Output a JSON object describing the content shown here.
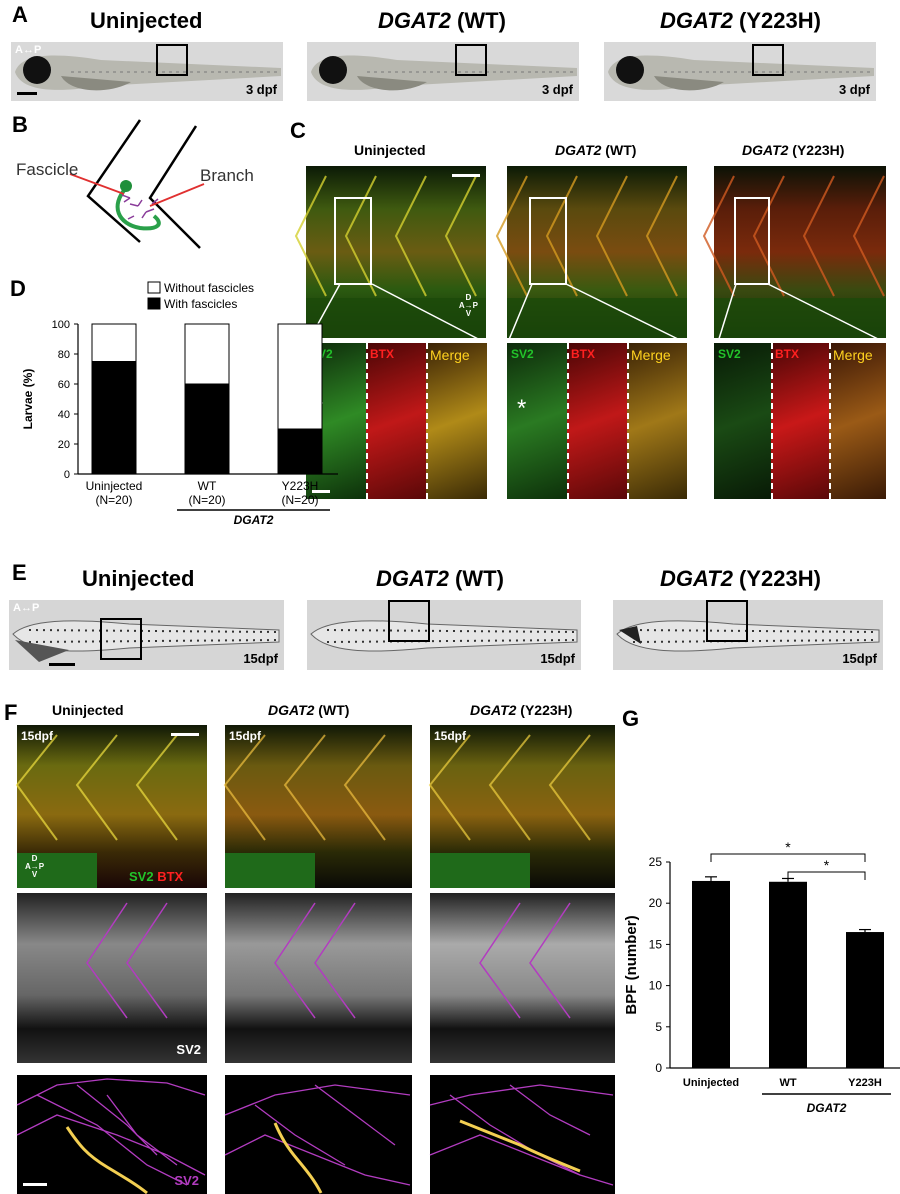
{
  "panel_letters": {
    "a": "A",
    "b": "B",
    "c": "C",
    "d": "D",
    "e": "E",
    "f": "F",
    "g": "G"
  },
  "panelA": {
    "titles": [
      {
        "plain": "Uninjected",
        "gene": "",
        "variant": ""
      },
      {
        "plain": "",
        "gene": "DGAT2",
        "variant": " (WT)"
      },
      {
        "plain": "",
        "gene": "DGAT2",
        "variant": " (Y223H)"
      }
    ],
    "orientation": "A↔P",
    "stage": "3 dpf"
  },
  "panelB": {
    "fascicle": "Fascicle",
    "branch": "Branch"
  },
  "panelC": {
    "titles": [
      {
        "plain": "Uninjected",
        "gene": "",
        "variant": ""
      },
      {
        "plain": "",
        "gene": "DGAT2",
        "variant": " (WT)"
      },
      {
        "plain": "",
        "gene": "DGAT2",
        "variant": " (Y223H)"
      }
    ],
    "axis": {
      "d": "D",
      "a": "A",
      "p": "P",
      "v": "V"
    },
    "channels": {
      "sv2": "SV2",
      "btx": "BTX",
      "merge": "Merge"
    },
    "asterisk": "*"
  },
  "panelE": {
    "titles": [
      {
        "plain": "Uninjected",
        "gene": "",
        "variant": ""
      },
      {
        "plain": "",
        "gene": "DGAT2",
        "variant": " (WT)"
      },
      {
        "plain": "",
        "gene": "DGAT2",
        "variant": " (Y223H)"
      }
    ],
    "orientation": "A↔P",
    "stage": "15dpf"
  },
  "panelF": {
    "titles": [
      {
        "plain": "Uninjected",
        "gene": "",
        "variant": ""
      },
      {
        "plain": "",
        "gene": "DGAT2",
        "variant": " (WT)"
      },
      {
        "plain": "",
        "gene": "DGAT2",
        "variant": " (Y223H)"
      }
    ],
    "stage": "15dpf",
    "axis": {
      "d": "D",
      "a": "A",
      "p": "P",
      "v": "V"
    },
    "sv2": "SV2",
    "btx": "BTX"
  },
  "colors": {
    "sv2": "#22c32a",
    "btx": "#ff2020",
    "merge": "#ffd21f",
    "magenta": "#b23cc0",
    "trace": "#f3cf52"
  },
  "chart_data": [
    {
      "type": "bar",
      "stacked": true,
      "panel": "D",
      "categories": [
        "Uninjected",
        "WT",
        "Y223H"
      ],
      "category_sublabels": [
        "(N=20)",
        "(N=20)",
        "(N=20)"
      ],
      "group_label": "DGAT2",
      "ylabel": "Larvae (%)",
      "ylim": [
        0,
        100
      ],
      "yticks": [
        0,
        20,
        40,
        60,
        80,
        100
      ],
      "legend": "top-right",
      "series": [
        {
          "name": "With fascicles",
          "color": "#000000",
          "values": [
            75,
            60,
            30
          ]
        },
        {
          "name": "Without fascicles",
          "color": "#ffffff",
          "values": [
            25,
            40,
            70
          ]
        }
      ]
    },
    {
      "type": "bar",
      "panel": "G",
      "categories": [
        "Uninjected",
        "WT",
        "Y223H"
      ],
      "group_label": "DGAT2",
      "ylabel": "BPF (number)",
      "ylim": [
        0,
        25
      ],
      "yticks": [
        0,
        5,
        10,
        15,
        20,
        25
      ],
      "values": [
        22.7,
        22.6,
        16.5
      ],
      "errors": [
        0.5,
        0.4,
        0.3
      ],
      "significance": [
        {
          "from": "Uninjected",
          "to": "Y223H",
          "label": "*"
        },
        {
          "from": "WT",
          "to": "Y223H",
          "label": "*"
        }
      ]
    }
  ]
}
